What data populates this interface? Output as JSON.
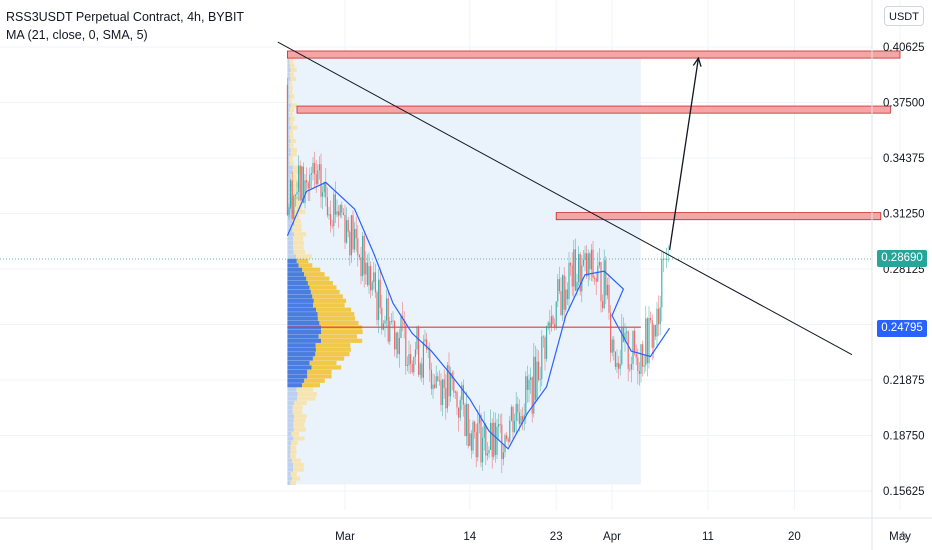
{
  "legend": {
    "title": "RSS3USDT Perpetual Contract, 4h, BYBIT",
    "indicator": "MA (21, close, 0, SMA, 5)"
  },
  "toolbar": {
    "currency": "USDT",
    "auto_label": "A"
  },
  "price_labels": {
    "last_price": "0.28690",
    "ma_value": "0.24795"
  },
  "colors": {
    "up": "#26a69a",
    "down": "#ef5350",
    "ma": "#2962ff",
    "last_price": "#26a69a",
    "ma_tag": "#2962ff",
    "zone_fill": "#f4a6a6",
    "zone_border": "#c62828",
    "poc_line": "#e53935",
    "vp_blue": "#4a7de0",
    "vp_yellow": "#f2c84b",
    "vp_range": "#eaf3fc"
  },
  "chart_data": {
    "type": "line",
    "title": "RSS3USDT Perpetual Contract, 4h, BYBIT",
    "y_ticks": [
      "0.40625",
      "0.37500",
      "0.34375",
      "0.31250",
      "0.28125",
      "0.25000",
      "0.21875",
      "0.18750",
      "0.15625"
    ],
    "x_ticks": [
      "Mar",
      "14",
      "23",
      "Apr",
      "11",
      "20",
      "May"
    ],
    "ylim": [
      0.15,
      0.42
    ],
    "series": [
      {
        "name": "MA (21, close, 0, SMA, 5)",
        "x": [
          "Feb 24",
          "Feb 26",
          "Feb 28",
          "Mar 2",
          "Mar 4",
          "Mar 6",
          "Mar 8",
          "Mar 10",
          "Mar 12",
          "Mar 14",
          "Mar 16",
          "Mar 18",
          "Mar 20",
          "Mar 22",
          "Mar 24",
          "Mar 26",
          "Mar 28",
          "Mar 30",
          "Apr 1",
          "Apr 3",
          "Apr 5",
          "Apr 7"
        ],
        "values": [
          0.3,
          0.325,
          0.33,
          0.315,
          0.29,
          0.262,
          0.245,
          0.235,
          0.222,
          0.208,
          0.19,
          0.18,
          0.2,
          0.215,
          0.255,
          0.278,
          0.28,
          0.27,
          0.255,
          0.235,
          0.232,
          0.248
        ]
      }
    ],
    "price_range_start": "Feb 24",
    "price_range_end": "Apr 4",
    "price_range_high": 0.402,
    "price_range_low": 0.16,
    "last_price": 0.2869,
    "ma_last": 0.24795,
    "poc_price": 0.2485,
    "resistance_zones": [
      {
        "from": "Feb 24",
        "to": "May 1",
        "low": 0.4,
        "high": 0.404
      },
      {
        "from": "Feb 25",
        "to": "Apr 30",
        "low": 0.369,
        "high": 0.373
      },
      {
        "from": "Mar 23",
        "to": "Apr 29",
        "low": 0.309,
        "high": 0.313
      }
    ],
    "trendline": {
      "from": [
        "Feb 23",
        0.409
      ],
      "to": [
        "Apr 26",
        0.233
      ]
    },
    "projection_arrow": {
      "from": [
        "Apr 7",
        0.292
      ],
      "to": [
        "Apr 10",
        0.4
      ]
    },
    "grid": true,
    "legend": "top-left"
  }
}
